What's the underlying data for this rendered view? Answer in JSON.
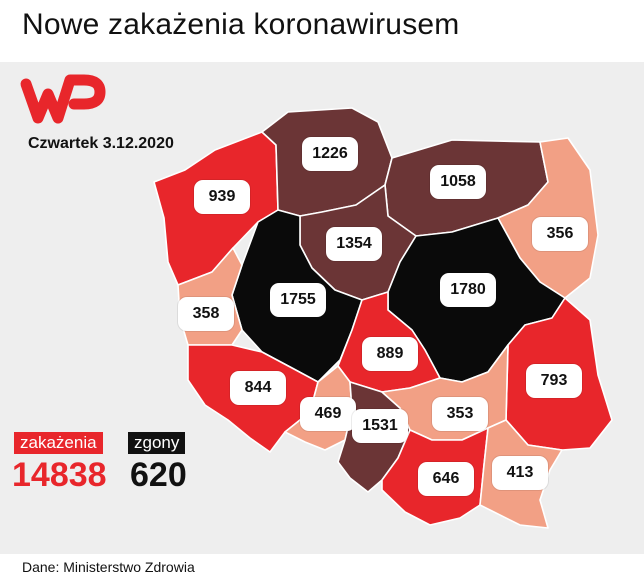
{
  "title": "Nowe zakażenia koronawirusem",
  "date": "Czwartek 3.12.2020",
  "logo": {
    "icon": "wp-logo-icon",
    "color": "#e8262b"
  },
  "colors": {
    "black": "#0a0a0a",
    "dark_brown": "#6b3536",
    "red": "#e8262b",
    "light": "#f2a085",
    "background": "#eeeeee"
  },
  "regions": [
    {
      "name": "zachodniopomorskie",
      "cases": "939"
    },
    {
      "name": "pomorskie",
      "cases": "1226"
    },
    {
      "name": "warmińsko-mazurskie",
      "cases": "1058"
    },
    {
      "name": "podlaskie",
      "cases": "356"
    },
    {
      "name": "kujawsko-pomorskie",
      "cases": "1354"
    },
    {
      "name": "wielkopolskie",
      "cases": "1755"
    },
    {
      "name": "mazowieckie",
      "cases": "1780"
    },
    {
      "name": "lubuskie",
      "cases": "358"
    },
    {
      "name": "łódzkie",
      "cases": "889"
    },
    {
      "name": "lubelskie",
      "cases": "793"
    },
    {
      "name": "dolnośląskie",
      "cases": "844"
    },
    {
      "name": "opolskie",
      "cases": "469"
    },
    {
      "name": "śląskie",
      "cases": "1531"
    },
    {
      "name": "świętokrzyskie",
      "cases": "353"
    },
    {
      "name": "małopolskie",
      "cases": "646"
    },
    {
      "name": "podkarpackie",
      "cases": "413"
    }
  ],
  "totals": {
    "cases_label": "zakażenia",
    "cases_value": "14838",
    "deaths_label": "zgony",
    "deaths_value": "620"
  },
  "source": "Dane: Ministerstwo Zdrowia"
}
